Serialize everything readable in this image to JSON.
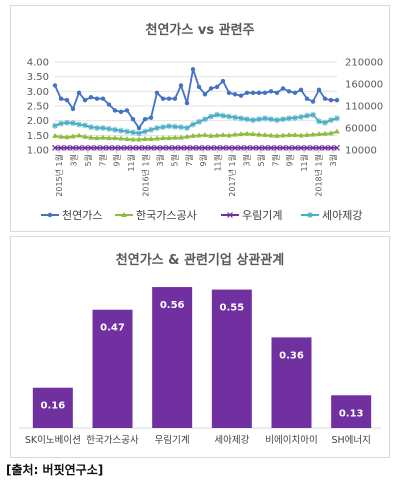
{
  "chart_data": [
    {
      "type": "line",
      "title": "천연가스 vs 관련주",
      "y_left": {
        "min": 1.0,
        "max": 4.0,
        "ticks": [
          "4.00",
          "3.50",
          "3.00",
          "2.50",
          "2.00",
          "1.50",
          "1.00"
        ]
      },
      "y_right": {
        "min": 10000,
        "max": 210000,
        "ticks": [
          "210000",
          "160000",
          "110000",
          "60000",
          "10000"
        ]
      },
      "x_tick_labels": [
        "2015년 1월",
        "3월",
        "5월",
        "7월",
        "9월",
        "11월",
        "2016년 1월",
        "3월",
        "5월",
        "7월",
        "9월",
        "11월",
        "2017년 1월",
        "3월",
        "5월",
        "7월",
        "9월",
        "11월",
        "2018년 1월",
        "3월"
      ],
      "series": [
        {
          "name": "천연가스",
          "axis": "left",
          "color": "#4472c4",
          "marker": "circle",
          "values": [
            3.2,
            2.75,
            2.7,
            2.4,
            2.95,
            2.7,
            2.8,
            2.75,
            2.75,
            2.55,
            2.35,
            2.3,
            2.35,
            2.05,
            1.75,
            2.05,
            2.1,
            2.95,
            2.75,
            2.75,
            2.75,
            3.2,
            2.6,
            3.75,
            3.15,
            2.9,
            3.1,
            3.15,
            3.35,
            2.95,
            2.9,
            2.85,
            2.95,
            2.95,
            2.95,
            2.95,
            3.0,
            2.95,
            3.1,
            3.0,
            2.95,
            3.05,
            2.75,
            2.65,
            3.05,
            2.75,
            2.7,
            2.7
          ]
        },
        {
          "name": "한국가스공사",
          "axis": "right",
          "color": "#8cbd3e",
          "marker": "triangle",
          "values": [
            42000,
            40000,
            39000,
            41000,
            43000,
            40000,
            38000,
            37000,
            38000,
            37000,
            37000,
            36000,
            35000,
            34000,
            34000,
            35000,
            35000,
            36000,
            37000,
            37000,
            38000,
            38000,
            40000,
            42000,
            43000,
            44000,
            42000,
            43000,
            44000,
            43000,
            45000,
            46000,
            47000,
            46000,
            45000,
            44000,
            43000,
            42000,
            43000,
            44000,
            44000,
            43000,
            44000,
            45000,
            46000,
            47000,
            48000,
            52000
          ]
        },
        {
          "name": "우림기계",
          "axis": "right",
          "color": "#7030a0",
          "marker": "x",
          "values": [
            15000,
            15000,
            15000,
            15000,
            15000,
            15000,
            15000,
            15000,
            15000,
            15000,
            15000,
            15000,
            15000,
            15000,
            15000,
            15000,
            15000,
            15000,
            15000,
            15000,
            15000,
            15000,
            15000,
            15000,
            15000,
            15000,
            15000,
            15000,
            15000,
            15000,
            15000,
            15000,
            15000,
            15000,
            15000,
            15000,
            15000,
            15000,
            15000,
            15000,
            15000,
            15000,
            15000,
            15000,
            15000,
            15000,
            15000,
            15000
          ]
        },
        {
          "name": "세아제강",
          "axis": "right",
          "color": "#4bacc6",
          "marker": "star",
          "values": [
            65000,
            70000,
            72000,
            71000,
            68000,
            66000,
            62000,
            60000,
            60000,
            58000,
            56000,
            54000,
            52000,
            50000,
            48000,
            52000,
            56000,
            60000,
            62000,
            64000,
            63000,
            62000,
            60000,
            68000,
            74000,
            80000,
            86000,
            90000,
            88000,
            86000,
            84000,
            82000,
            80000,
            78000,
            80000,
            82000,
            80000,
            78000,
            80000,
            82000,
            83000,
            85000,
            88000,
            90000,
            75000,
            72000,
            78000,
            82000
          ]
        }
      ]
    },
    {
      "type": "bar",
      "title": "천연가스 & 관련기업 상관관계",
      "categories": [
        "SK이노베이션",
        "한국가스공사",
        "우림기계",
        "세아제강",
        "비에이치아이",
        "SH에너지"
      ],
      "values": [
        0.16,
        0.47,
        0.56,
        0.55,
        0.36,
        0.13
      ],
      "value_labels": [
        "0.16",
        "0.47",
        "0.56",
        "0.55",
        "0.36",
        "0.13"
      ],
      "color": "#7030a0",
      "ylim": [
        0,
        0.6
      ]
    }
  ],
  "source_note": "[출처: 버핏연구소]"
}
